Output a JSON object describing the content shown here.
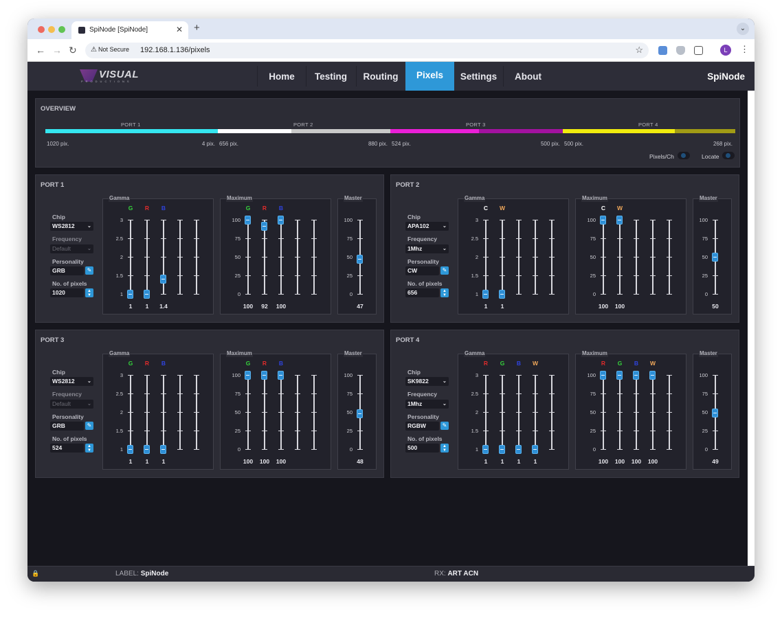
{
  "browser": {
    "tab_title": "SpiNode [SpiNode]",
    "not_secure": "Not Secure",
    "url": "192.168.1.136/pixels",
    "profile_initial": "L"
  },
  "nav": {
    "items": [
      {
        "label": "Home",
        "active": false
      },
      {
        "label": "Testing",
        "active": false
      },
      {
        "label": "Routing",
        "active": false
      },
      {
        "label": "Pixels",
        "active": true
      },
      {
        "label": "Settings",
        "active": false
      },
      {
        "label": "About",
        "active": false
      }
    ],
    "device_name": "SpiNode",
    "logo_text": "VISUAL",
    "logo_sub": "PRODUCTIONS"
  },
  "overview": {
    "title": "OVERVIEW",
    "ports": [
      {
        "label": "PORT 1",
        "used": "1020 pix.",
        "free": "4 pix.",
        "used_fraction": 0.996,
        "color_used": "#35e6f0",
        "color_free": "#35e6f0"
      },
      {
        "label": "PORT 2",
        "used": "656 pix.",
        "free": "880 pix.",
        "used_fraction": 0.427,
        "color_used": "#ffffff",
        "color_free": "#c9c9c9"
      },
      {
        "label": "PORT 3",
        "used": "524 pix.",
        "free": "500 pix.",
        "used_fraction": 0.512,
        "color_used": "#ea1fd7",
        "color_free": "#a312a0"
      },
      {
        "label": "PORT 4",
        "used": "500 pix.",
        "free": "268 pix.",
        "used_fraction": 0.651,
        "color_used": "#f1ec0e",
        "color_free": "#a19b15"
      }
    ],
    "toggles": {
      "pixels_ch": "Pixels/Ch",
      "locate": "Locate"
    }
  },
  "labels": {
    "chip": "Chip",
    "frequency": "Frequency",
    "personality": "Personality",
    "num_pixels": "No. of pixels",
    "gamma": "Gamma",
    "maximum": "Maximum",
    "master": "Master",
    "gamma_ticks": [
      "3",
      "2.5",
      "2",
      "1.5",
      "1"
    ],
    "max_ticks": [
      "100",
      "75",
      "50",
      "25",
      "0"
    ]
  },
  "ports": [
    {
      "title": "PORT 1",
      "chip": "WS2812",
      "frequency": "Default",
      "frequency_disabled": true,
      "personality": "GRB",
      "pixels": "1020",
      "channels": [
        {
          "name": "G",
          "color": "#35d23c"
        },
        {
          "name": "R",
          "color": "#e02b2b"
        },
        {
          "name": "B",
          "color": "#2f44e0"
        }
      ],
      "gamma_values": [
        "1",
        "1",
        "1.4"
      ],
      "gamma_levels": [
        0,
        0,
        0.2
      ],
      "max_values": [
        "100",
        "92",
        "100"
      ],
      "max_levels": [
        1,
        0.92,
        1
      ],
      "master_value": "47",
      "master_level": 0.47
    },
    {
      "title": "PORT 2",
      "chip": "APA102",
      "frequency": "1Mhz",
      "frequency_disabled": false,
      "personality": "CW",
      "pixels": "656",
      "channels": [
        {
          "name": "C",
          "color": "#ffffff"
        },
        {
          "name": "W",
          "color": "#f0a85a"
        }
      ],
      "gamma_values": [
        "1",
        "1"
      ],
      "gamma_levels": [
        0,
        0
      ],
      "max_values": [
        "100",
        "100"
      ],
      "max_levels": [
        1,
        1
      ],
      "master_value": "50",
      "master_level": 0.5
    },
    {
      "title": "PORT 3",
      "chip": "WS2812",
      "frequency": "Default",
      "frequency_disabled": true,
      "personality": "GRB",
      "pixels": "524",
      "channels": [
        {
          "name": "G",
          "color": "#35d23c"
        },
        {
          "name": "R",
          "color": "#e02b2b"
        },
        {
          "name": "B",
          "color": "#2f44e0"
        }
      ],
      "gamma_values": [
        "1",
        "1",
        "1"
      ],
      "gamma_levels": [
        0,
        0,
        0
      ],
      "max_values": [
        "100",
        "100",
        "100"
      ],
      "max_levels": [
        1,
        1,
        1
      ],
      "master_value": "48",
      "master_level": 0.48
    },
    {
      "title": "PORT 4",
      "chip": "SK9822",
      "frequency": "1Mhz",
      "frequency_disabled": false,
      "personality": "RGBW",
      "pixels": "500",
      "channels": [
        {
          "name": "R",
          "color": "#e02b2b"
        },
        {
          "name": "G",
          "color": "#35d23c"
        },
        {
          "name": "B",
          "color": "#2f44e0"
        },
        {
          "name": "W",
          "color": "#f0a85a"
        }
      ],
      "gamma_values": [
        "1",
        "1",
        "1",
        "1"
      ],
      "gamma_levels": [
        0,
        0,
        0,
        0
      ],
      "max_values": [
        "100",
        "100",
        "100",
        "100"
      ],
      "max_levels": [
        1,
        1,
        1,
        1
      ],
      "master_value": "49",
      "master_level": 0.49
    }
  ],
  "footer": {
    "label_prefix": "LABEL:",
    "label_value": "SpiNode",
    "rx_prefix": "RX:",
    "rx_value": "ART ACN"
  }
}
